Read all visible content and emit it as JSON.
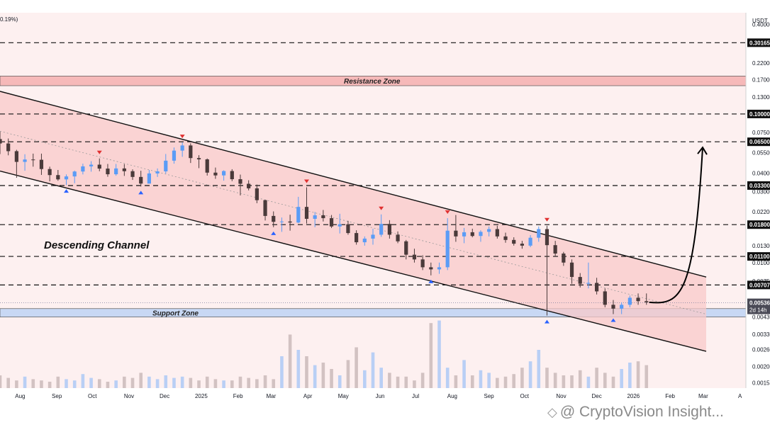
{
  "header": {
    "change_text": "0.19%)"
  },
  "axis": {
    "unit": "USDT"
  },
  "watermark": {
    "logo_icon": "binance-diamond-icon",
    "text": "@ CryptoVision Insight..."
  },
  "chart_data": {
    "type": "candlestick",
    "title": "",
    "scale": "log",
    "grid": false,
    "y_range": [
      0.00143,
      0.48
    ],
    "x_range": [
      "2024-07-15",
      "2026-04-06"
    ],
    "x_ticks": [
      {
        "date": "2024-08-01",
        "label": "Aug"
      },
      {
        "date": "2024-09-01",
        "label": "Sep"
      },
      {
        "date": "2024-10-01",
        "label": "Oct"
      },
      {
        "date": "2024-11-01",
        "label": "Nov"
      },
      {
        "date": "2024-12-01",
        "label": "Dec"
      },
      {
        "date": "2025-01-01",
        "label": "2025"
      },
      {
        "date": "2025-02-01",
        "label": "Feb"
      },
      {
        "date": "2025-03-01",
        "label": "Mar"
      },
      {
        "date": "2025-04-01",
        "label": "Apr"
      },
      {
        "date": "2025-05-01",
        "label": "May"
      },
      {
        "date": "2025-06-01",
        "label": "Jun"
      },
      {
        "date": "2025-07-01",
        "label": "Jul"
      },
      {
        "date": "2025-08-01",
        "label": "Aug"
      },
      {
        "date": "2025-09-01",
        "label": "Sep"
      },
      {
        "date": "2025-10-01",
        "label": "Oct"
      },
      {
        "date": "2025-11-01",
        "label": "Nov"
      },
      {
        "date": "2025-12-01",
        "label": "Dec"
      },
      {
        "date": "2026-01-01",
        "label": "2026"
      },
      {
        "date": "2026-02-01",
        "label": "Feb"
      },
      {
        "date": "2026-03-01",
        "label": "Mar"
      },
      {
        "date": "2026-04-01",
        "label": "A"
      }
    ],
    "y_ticks": [
      "0.40000",
      "0.22000",
      "0.17000",
      "0.13000",
      "0.07500",
      "0.05500",
      "0.04000",
      "0.03000",
      "0.02200",
      "0.01300",
      "0.01000",
      "0.00750",
      "0.00430",
      "0.00330",
      "0.00260",
      "0.00200",
      "0.00155"
    ],
    "price_labels": [
      {
        "value": 0.30165,
        "text": "0.30165"
      },
      {
        "value": 0.1,
        "text": "0.10000"
      },
      {
        "value": 0.065,
        "text": "0.06500"
      },
      {
        "value": 0.033,
        "text": "0.03300"
      },
      {
        "value": 0.018,
        "text": "0.01800"
      },
      {
        "value": 0.011,
        "text": "0.01100"
      },
      {
        "value": 0.00707,
        "text": "0.00707"
      }
    ],
    "current_price": {
      "text": "0.00536",
      "countdown": "2d 14h",
      "value": 0.00536
    },
    "zones": [
      {
        "name": "Resistance Zone",
        "label": "Resistance Zone",
        "from": 0.155,
        "to": 0.18,
        "color": "#f6b9b9"
      },
      {
        "name": "Support Zone",
        "label": "Support Zone",
        "from": 0.0043,
        "to": 0.0049,
        "color": "#c8d8f4"
      }
    ],
    "channel": {
      "label": "Descending Channel",
      "upper": [
        {
          "date": "2024-07-15",
          "value": 0.142
        },
        {
          "date": "2026-04-06",
          "value": 0.0068
        }
      ],
      "lower": [
        {
          "date": "2024-07-15",
          "value": 0.0413
        },
        {
          "date": "2026-04-06",
          "value": 0.00216
        }
      ]
    },
    "projection_target": 0.065,
    "candles": [
      {
        "date": "2024-07-15",
        "o": 0.0678,
        "h": 0.0761,
        "l": 0.0537,
        "c": 0.0633
      },
      {
        "date": "2024-07-22",
        "o": 0.0633,
        "h": 0.0684,
        "l": 0.0527,
        "c": 0.0562
      },
      {
        "date": "2024-07-29",
        "o": 0.0562,
        "h": 0.0574,
        "l": 0.0372,
        "c": 0.0476
      },
      {
        "date": "2024-08-05",
        "o": 0.0476,
        "h": 0.0536,
        "l": 0.0415,
        "c": 0.0494
      },
      {
        "date": "2024-08-12",
        "o": 0.0494,
        "h": 0.0541,
        "l": 0.0442,
        "c": 0.0492
      },
      {
        "date": "2024-08-19",
        "o": 0.0492,
        "h": 0.0541,
        "l": 0.0389,
        "c": 0.0426
      },
      {
        "date": "2024-08-26",
        "o": 0.0426,
        "h": 0.0442,
        "l": 0.0352,
        "c": 0.0388
      },
      {
        "date": "2024-09-02",
        "o": 0.0388,
        "h": 0.042,
        "l": 0.0355,
        "c": 0.0363
      },
      {
        "date": "2024-09-09",
        "o": 0.0363,
        "h": 0.0392,
        "l": 0.0333,
        "c": 0.038
      },
      {
        "date": "2024-09-16",
        "o": 0.038,
        "h": 0.0416,
        "l": 0.0342,
        "c": 0.041
      },
      {
        "date": "2024-09-23",
        "o": 0.041,
        "h": 0.0463,
        "l": 0.0392,
        "c": 0.0444
      },
      {
        "date": "2024-09-30",
        "o": 0.0444,
        "h": 0.0481,
        "l": 0.0409,
        "c": 0.0456
      },
      {
        "date": "2024-10-07",
        "o": 0.0456,
        "h": 0.0502,
        "l": 0.0412,
        "c": 0.0429
      },
      {
        "date": "2024-10-14",
        "o": 0.0429,
        "h": 0.0461,
        "l": 0.0378,
        "c": 0.0393
      },
      {
        "date": "2024-10-21",
        "o": 0.0393,
        "h": 0.0461,
        "l": 0.0384,
        "c": 0.043
      },
      {
        "date": "2024-10-28",
        "o": 0.043,
        "h": 0.046,
        "l": 0.0383,
        "c": 0.0412
      },
      {
        "date": "2024-11-04",
        "o": 0.0412,
        "h": 0.0424,
        "l": 0.036,
        "c": 0.0377
      },
      {
        "date": "2024-11-11",
        "o": 0.0377,
        "h": 0.0415,
        "l": 0.0325,
        "c": 0.034
      },
      {
        "date": "2024-11-18",
        "o": 0.034,
        "h": 0.042,
        "l": 0.034,
        "c": 0.0398
      },
      {
        "date": "2024-11-25",
        "o": 0.0398,
        "h": 0.043,
        "l": 0.0377,
        "c": 0.0411
      },
      {
        "date": "2024-12-02",
        "o": 0.0411,
        "h": 0.0538,
        "l": 0.0397,
        "c": 0.0485
      },
      {
        "date": "2024-12-09",
        "o": 0.0485,
        "h": 0.0595,
        "l": 0.0463,
        "c": 0.0567
      },
      {
        "date": "2024-12-16",
        "o": 0.0567,
        "h": 0.0643,
        "l": 0.0515,
        "c": 0.0614
      },
      {
        "date": "2024-12-23",
        "o": 0.0614,
        "h": 0.0635,
        "l": 0.0468,
        "c": 0.0505
      },
      {
        "date": "2024-12-30",
        "o": 0.0505,
        "h": 0.0528,
        "l": 0.0432,
        "c": 0.0495
      },
      {
        "date": "2025-01-06",
        "o": 0.0495,
        "h": 0.0502,
        "l": 0.0385,
        "c": 0.0403
      },
      {
        "date": "2025-01-13",
        "o": 0.0403,
        "h": 0.0436,
        "l": 0.0366,
        "c": 0.0386
      },
      {
        "date": "2025-01-20",
        "o": 0.0386,
        "h": 0.0418,
        "l": 0.0356,
        "c": 0.0413
      },
      {
        "date": "2025-01-27",
        "o": 0.0413,
        "h": 0.0425,
        "l": 0.0353,
        "c": 0.0364
      },
      {
        "date": "2025-02-03",
        "o": 0.0364,
        "h": 0.0391,
        "l": 0.0283,
        "c": 0.0339
      },
      {
        "date": "2025-02-10",
        "o": 0.0339,
        "h": 0.0358,
        "l": 0.0306,
        "c": 0.0316
      },
      {
        "date": "2025-02-17",
        "o": 0.0316,
        "h": 0.0335,
        "l": 0.0251,
        "c": 0.0263
      },
      {
        "date": "2025-02-24",
        "o": 0.0263,
        "h": 0.0265,
        "l": 0.0192,
        "c": 0.0206
      },
      {
        "date": "2025-03-03",
        "o": 0.0206,
        "h": 0.0221,
        "l": 0.0173,
        "c": 0.0188
      },
      {
        "date": "2025-03-10",
        "o": 0.0188,
        "h": 0.0201,
        "l": 0.0161,
        "c": 0.0189
      },
      {
        "date": "2025-03-17",
        "o": 0.0189,
        "h": 0.021,
        "l": 0.0164,
        "c": 0.0186
      },
      {
        "date": "2025-03-24",
        "o": 0.0186,
        "h": 0.0277,
        "l": 0.0184,
        "c": 0.0237
      },
      {
        "date": "2025-03-31",
        "o": 0.0237,
        "h": 0.0321,
        "l": 0.0183,
        "c": 0.0197
      },
      {
        "date": "2025-04-07",
        "o": 0.0197,
        "h": 0.0219,
        "l": 0.0173,
        "c": 0.0208
      },
      {
        "date": "2025-04-14",
        "o": 0.0208,
        "h": 0.0226,
        "l": 0.0189,
        "c": 0.0199
      },
      {
        "date": "2025-04-21",
        "o": 0.0199,
        "h": 0.0209,
        "l": 0.0171,
        "c": 0.0175
      },
      {
        "date": "2025-04-28",
        "o": 0.0175,
        "h": 0.0213,
        "l": 0.0157,
        "c": 0.0181
      },
      {
        "date": "2025-05-05",
        "o": 0.0181,
        "h": 0.0191,
        "l": 0.0154,
        "c": 0.0158
      },
      {
        "date": "2025-05-12",
        "o": 0.0158,
        "h": 0.0165,
        "l": 0.0132,
        "c": 0.0137
      },
      {
        "date": "2025-05-19",
        "o": 0.0137,
        "h": 0.015,
        "l": 0.013,
        "c": 0.0145
      },
      {
        "date": "2025-05-26",
        "o": 0.0145,
        "h": 0.0169,
        "l": 0.0132,
        "c": 0.0154
      },
      {
        "date": "2025-06-02",
        "o": 0.0154,
        "h": 0.0211,
        "l": 0.0149,
        "c": 0.0182
      },
      {
        "date": "2025-06-09",
        "o": 0.0182,
        "h": 0.0193,
        "l": 0.0145,
        "c": 0.0154
      },
      {
        "date": "2025-06-16",
        "o": 0.0154,
        "h": 0.0162,
        "l": 0.0135,
        "c": 0.0139
      },
      {
        "date": "2025-06-23",
        "o": 0.0139,
        "h": 0.0142,
        "l": 0.0105,
        "c": 0.0113
      },
      {
        "date": "2025-06-30",
        "o": 0.0113,
        "h": 0.0124,
        "l": 0.01,
        "c": 0.0105
      },
      {
        "date": "2025-07-07",
        "o": 0.0105,
        "h": 0.0112,
        "l": 0.0089,
        "c": 0.0093
      },
      {
        "date": "2025-07-14",
        "o": 0.0093,
        "h": 0.01,
        "l": 0.0082,
        "c": 0.009
      },
      {
        "date": "2025-07-21",
        "o": 0.009,
        "h": 0.01,
        "l": 0.0084,
        "c": 0.0093
      },
      {
        "date": "2025-07-28",
        "o": 0.0093,
        "h": 0.0199,
        "l": 0.0089,
        "c": 0.0164
      },
      {
        "date": "2025-08-04",
        "o": 0.0164,
        "h": 0.0209,
        "l": 0.0138,
        "c": 0.015
      },
      {
        "date": "2025-08-11",
        "o": 0.015,
        "h": 0.0171,
        "l": 0.0135,
        "c": 0.016
      },
      {
        "date": "2025-08-18",
        "o": 0.016,
        "h": 0.0169,
        "l": 0.0148,
        "c": 0.0151
      },
      {
        "date": "2025-08-25",
        "o": 0.0151,
        "h": 0.0165,
        "l": 0.0138,
        "c": 0.0161
      },
      {
        "date": "2025-09-01",
        "o": 0.0161,
        "h": 0.0175,
        "l": 0.015,
        "c": 0.0168
      },
      {
        "date": "2025-09-08",
        "o": 0.0168,
        "h": 0.0177,
        "l": 0.0145,
        "c": 0.015
      },
      {
        "date": "2025-09-15",
        "o": 0.015,
        "h": 0.0159,
        "l": 0.0136,
        "c": 0.0142
      },
      {
        "date": "2025-09-22",
        "o": 0.0142,
        "h": 0.0148,
        "l": 0.013,
        "c": 0.0134
      },
      {
        "date": "2025-09-29",
        "o": 0.0134,
        "h": 0.014,
        "l": 0.0124,
        "c": 0.013
      },
      {
        "date": "2025-10-06",
        "o": 0.013,
        "h": 0.0153,
        "l": 0.0127,
        "c": 0.0147
      },
      {
        "date": "2025-10-13",
        "o": 0.0147,
        "h": 0.0175,
        "l": 0.0138,
        "c": 0.0168
      },
      {
        "date": "2025-10-20",
        "o": 0.0168,
        "h": 0.0177,
        "l": 0.0044,
        "c": 0.0131
      },
      {
        "date": "2025-10-27",
        "o": 0.0131,
        "h": 0.014,
        "l": 0.0111,
        "c": 0.0115
      },
      {
        "date": "2025-11-03",
        "o": 0.0115,
        "h": 0.0118,
        "l": 0.0095,
        "c": 0.01
      },
      {
        "date": "2025-11-10",
        "o": 0.01,
        "h": 0.0105,
        "l": 0.0072,
        "c": 0.008
      },
      {
        "date": "2025-11-17",
        "o": 0.008,
        "h": 0.0085,
        "l": 0.0068,
        "c": 0.0072
      },
      {
        "date": "2025-11-24",
        "o": 0.0072,
        "h": 0.01,
        "l": 0.0067,
        "c": 0.0073
      },
      {
        "date": "2025-12-01",
        "o": 0.0073,
        "h": 0.0079,
        "l": 0.0061,
        "c": 0.0064
      },
      {
        "date": "2025-12-08",
        "o": 0.0064,
        "h": 0.0067,
        "l": 0.005,
        "c": 0.0052
      },
      {
        "date": "2025-12-15",
        "o": 0.0052,
        "h": 0.0056,
        "l": 0.0045,
        "c": 0.0049
      },
      {
        "date": "2025-12-22",
        "o": 0.0049,
        "h": 0.0054,
        "l": 0.0045,
        "c": 0.0052
      },
      {
        "date": "2025-12-29",
        "o": 0.0052,
        "h": 0.006,
        "l": 0.005,
        "c": 0.0058
      },
      {
        "date": "2026-01-05",
        "o": 0.0058,
        "h": 0.0062,
        "l": 0.0052,
        "c": 0.0055
      },
      {
        "date": "2026-01-12",
        "o": 0.0055,
        "h": 0.0062,
        "l": 0.0052,
        "c": 0.0054
      }
    ],
    "volume": [
      1.0,
      0.8,
      0.6,
      0.9,
      0.7,
      0.6,
      0.5,
      0.9,
      0.7,
      0.6,
      1.1,
      0.8,
      0.7,
      0.5,
      0.6,
      0.9,
      0.8,
      1.2,
      0.9,
      0.7,
      1.0,
      0.8,
      0.9,
      0.8,
      0.6,
      0.9,
      0.7,
      0.6,
      0.6,
      0.9,
      0.8,
      0.7,
      1.0,
      0.7,
      2.5,
      4.2,
      3.0,
      2.5,
      1.8,
      2.0,
      1.5,
      1.0,
      2.2,
      3.2,
      1.4,
      2.8,
      1.6,
      1.2,
      0.9,
      0.9,
      0.6,
      1.2,
      5.1,
      5.3,
      1.6,
      1.0,
      2.2,
      1.0,
      1.4,
      1.2,
      0.8,
      0.9,
      1.1,
      1.6,
      2.1,
      3.0,
      1.6,
      1.2,
      1.0,
      1.0,
      1.4,
      0.9,
      1.6,
      1.2,
      0.9,
      1.5,
      2.0,
      2.1,
      1.8,
      1.5
    ],
    "markers": [
      {
        "date": "2024-10-07",
        "type": "peak"
      },
      {
        "date": "2024-12-16",
        "type": "peak"
      },
      {
        "date": "2025-03-31",
        "type": "peak"
      },
      {
        "date": "2025-06-02",
        "type": "peak"
      },
      {
        "date": "2025-07-28",
        "type": "peak"
      },
      {
        "date": "2025-10-20",
        "type": "peak"
      },
      {
        "date": "2024-09-09",
        "type": "trough"
      },
      {
        "date": "2024-11-11",
        "type": "trough"
      },
      {
        "date": "2025-03-03",
        "type": "trough"
      },
      {
        "date": "2025-07-14",
        "type": "trough"
      },
      {
        "date": "2025-10-20",
        "type": "trough"
      },
      {
        "date": "2025-12-15",
        "type": "trough"
      }
    ]
  },
  "colors": {
    "up": "#5b9cf6",
    "down": "#4a3a3a",
    "channel_fill": "#f8caca",
    "background": "#fdf0f0",
    "peak_marker": "#e03131",
    "trough_marker": "#2962ff",
    "axis_text": "#131722"
  }
}
